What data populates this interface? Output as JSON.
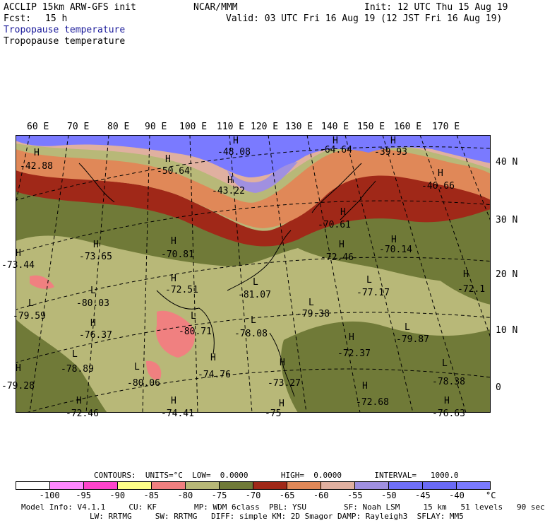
{
  "header": {
    "model": "ACCLIP 15km ARW-GFS init",
    "center": "NCAR/MMM",
    "init": "Init: 12 UTC Thu 15 Aug 19",
    "fcst_label": "Fcst:",
    "fcst_value": "15 h",
    "valid": "Valid: 03 UTC Fri 16 Aug 19 (12 JST Fri 16 Aug 19)",
    "title1": "Tropopause temperature",
    "title2": "Tropopause temperature"
  },
  "map": {
    "lon_labels": [
      "60 E",
      "70 E",
      "80 E",
      "90 E",
      "100 E",
      "110 E",
      "120 E",
      "130 E",
      "140 E",
      "150 E",
      "160 E",
      "170 E"
    ],
    "lat_labels": [
      "40 N",
      "30 N",
      "20 N",
      "10 N",
      "0"
    ],
    "extrema": [
      {
        "mark": "H",
        "value": "-42.88"
      },
      {
        "mark": "H",
        "value": "-50.64"
      },
      {
        "mark": "H",
        "value": "-48.08"
      },
      {
        "mark": "H",
        "value": "-43.22"
      },
      {
        "mark": "H",
        "value": "-64.64"
      },
      {
        "mark": "H",
        "value": "-39.93"
      },
      {
        "mark": "H",
        "value": "-46.66"
      },
      {
        "mark": "H",
        "value": "-73.65"
      },
      {
        "mark": "H",
        "value": "-70.81"
      },
      {
        "mark": "H",
        "value": "-73.44"
      },
      {
        "mark": "H",
        "value": "-70.61"
      },
      {
        "mark": "H",
        "value": "-72.46"
      },
      {
        "mark": "H",
        "value": "-70.14"
      },
      {
        "mark": "H",
        "value": "-72.51"
      },
      {
        "mark": "L",
        "value": "-81.07"
      },
      {
        "mark": "L",
        "value": "-77.17"
      },
      {
        "mark": "H",
        "value": "-72.1"
      },
      {
        "mark": "L",
        "value": "-80.03"
      },
      {
        "mark": "L",
        "value": "-79.59"
      },
      {
        "mark": "L",
        "value": "-79.38"
      },
      {
        "mark": "H",
        "value": "-76.37"
      },
      {
        "mark": "L",
        "value": "-80.71"
      },
      {
        "mark": "L",
        "value": "-78.08"
      },
      {
        "mark": "L",
        "value": "-79.87"
      },
      {
        "mark": "H",
        "value": "-72.37"
      },
      {
        "mark": "L",
        "value": "-78.89"
      },
      {
        "mark": "L",
        "value": "-80.06"
      },
      {
        "mark": "H",
        "value": "-74.76"
      },
      {
        "mark": "H",
        "value": "-73.27"
      },
      {
        "mark": "L",
        "value": "-78.38"
      },
      {
        "mark": "H",
        "value": "-72.68"
      },
      {
        "mark": "H",
        "value": "-79.28"
      },
      {
        "mark": "H",
        "value": "-72.46"
      },
      {
        "mark": "H",
        "value": "-74.41"
      },
      {
        "mark": "H",
        "value": "-75"
      },
      {
        "mark": "H",
        "value": "-76.63"
      }
    ]
  },
  "contours_line": "CONTOURS:  UNITS=°C  LOW=  0.0000       HIGH=  0.0000       INTERVAL=   1000.0",
  "legend": {
    "colors": [
      "#ffffff",
      "#ff88ff",
      "#ff44cc",
      "#ffff88",
      "#f08080",
      "#b8b878",
      "#707a38",
      "#a02818",
      "#e08858",
      "#e0b0a0",
      "#a090e0",
      "#7070f8",
      "#6a6af5",
      "#7a7aff"
    ],
    "levels": [
      "-100",
      "-95",
      "-90",
      "-85",
      "-80",
      "-75",
      "-70",
      "-65",
      "-60",
      "-55",
      "-50",
      "-45",
      "-40"
    ],
    "unit": "°C"
  },
  "footer": {
    "line1": "Model Info: V4.1.1     CU: KF        MP: WDM 6class  PBL: YSU        SF: Noah LSM     15 km   51 levels   90 sec",
    "line2": "LW: RRTMG     SW: RRTMG   DIFF: simple KM: 2D Smagor DAMP: Rayleigh3  SFLAY: MM5"
  }
}
